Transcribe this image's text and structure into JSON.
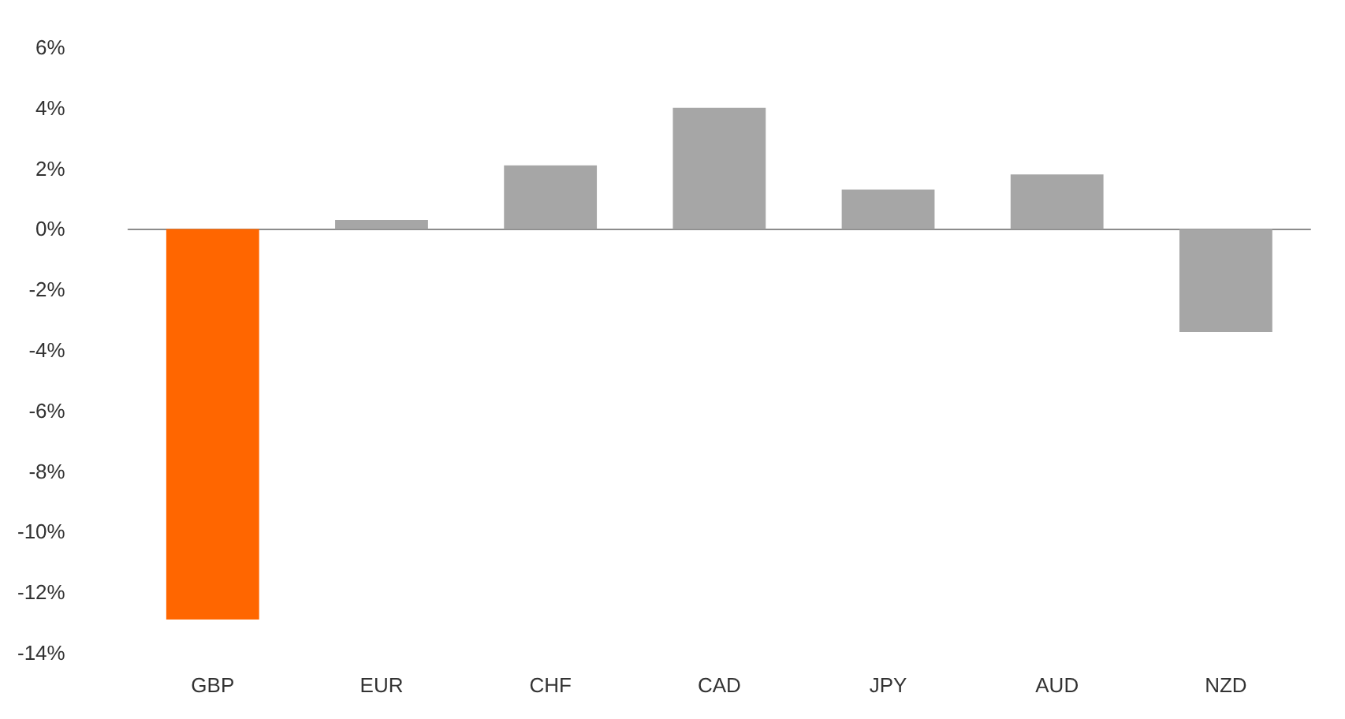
{
  "chart_data": {
    "type": "bar",
    "categories": [
      "GBP",
      "EUR",
      "CHF",
      "CAD",
      "JPY",
      "AUD",
      "NZD"
    ],
    "values": [
      -12.9,
      0.3,
      2.1,
      4.0,
      1.3,
      1.8,
      -3.4
    ],
    "colors": [
      "#ff6600",
      "#a6a6a6",
      "#a6a6a6",
      "#a6a6a6",
      "#a6a6a6",
      "#a6a6a6",
      "#a6a6a6"
    ],
    "ylim": [
      -14,
      6
    ],
    "yticks": [
      {
        "value": -14,
        "label": "-14%"
      },
      {
        "value": -12,
        "label": "-12%"
      },
      {
        "value": -10,
        "label": "-10%"
      },
      {
        "value": -8,
        "label": "-8%"
      },
      {
        "value": -6,
        "label": "-6%"
      },
      {
        "value": -4,
        "label": "-4%"
      },
      {
        "value": -2,
        "label": "-2%"
      },
      {
        "value": 0,
        "label": "0%"
      },
      {
        "value": 2,
        "label": "2%"
      },
      {
        "value": 4,
        "label": "4%"
      },
      {
        "value": 6,
        "label": "6%"
      }
    ]
  }
}
